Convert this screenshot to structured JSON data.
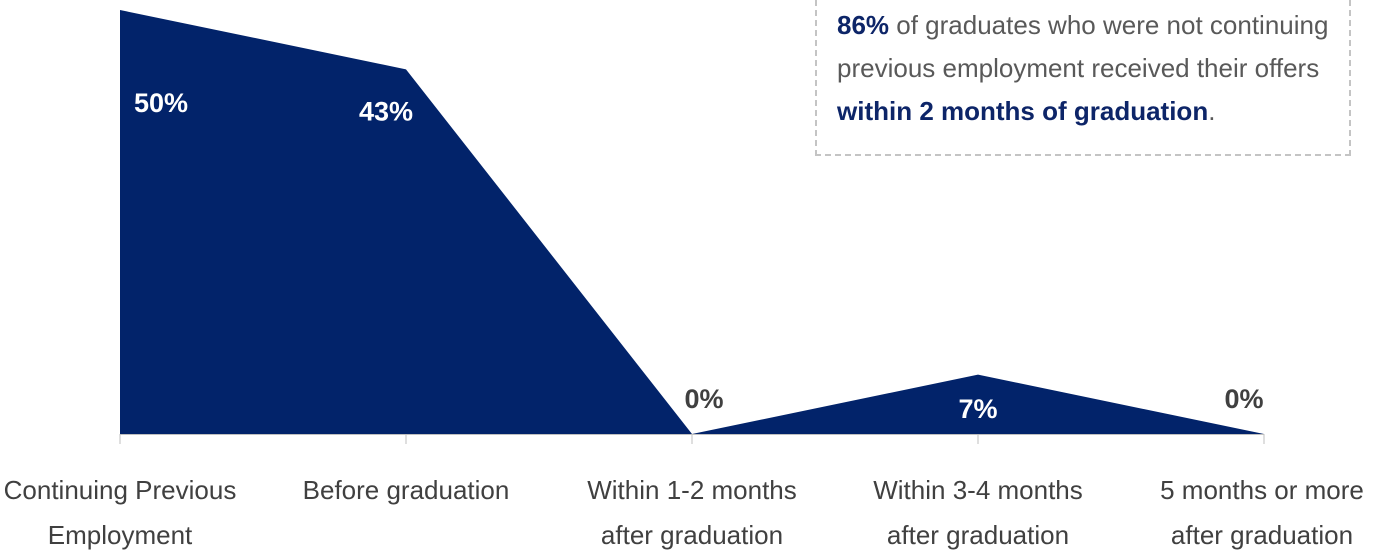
{
  "chart_data": {
    "type": "area",
    "categories": [
      [
        "Continuing Previous",
        "Employment"
      ],
      [
        "Before graduation"
      ],
      [
        "Within 1-2 months",
        "after graduation"
      ],
      [
        "Within 3-4 months",
        "after graduation"
      ],
      [
        "5 months or more",
        "after graduation"
      ]
    ],
    "values": [
      50,
      43,
      0,
      7,
      0
    ],
    "data_labels": [
      "50%",
      "43%",
      "0%",
      "7%",
      "0%"
    ],
    "ylim": [
      0,
      50
    ],
    "grid": false,
    "title": "",
    "xlabel": "",
    "ylabel": ""
  },
  "callout": {
    "highlight_value": "86%",
    "text_part1": " of graduates who were not continuing previous employment received their offers ",
    "highlight_phrase": "within 2 months of graduation",
    "text_part2": "."
  },
  "colors": {
    "area_fill": "#02236a",
    "label_on_area": "#ffffff",
    "label_off_area": "#404040",
    "axis": "#bfbfbf",
    "callout_highlight": "#0d2568",
    "callout_text": "#595959"
  }
}
